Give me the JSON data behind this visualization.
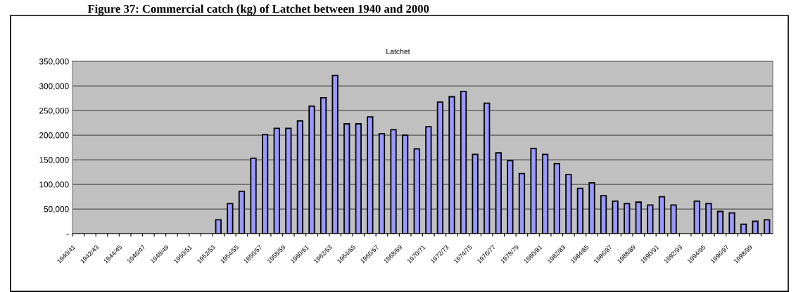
{
  "chart_data": {
    "type": "bar",
    "title": "Figure 37: Commercial catch (kg) of Latchet between 1940 and 2000",
    "subtitle": "Latchet",
    "categories": [
      "1940/41",
      null,
      "1942/43",
      null,
      "1944/45",
      null,
      "1946/47",
      null,
      "1948/49",
      null,
      "1950/51",
      null,
      "1952/53",
      null,
      "1954/55",
      null,
      "1956/57",
      null,
      "1958/59",
      null,
      "1960/61",
      null,
      "1962/63",
      null,
      "1964/65",
      null,
      "1966/67",
      null,
      "1968/69",
      null,
      "1970/71",
      null,
      "1972/73",
      null,
      "1974/75",
      null,
      "1976/77",
      null,
      "1978/79",
      null,
      "1980/81",
      null,
      "1982/83",
      null,
      "1984/85",
      null,
      "1986/87",
      null,
      "1988/89",
      null,
      "1990/91",
      null,
      "1992/93",
      null,
      "1994/95",
      null,
      "1996/97",
      null,
      "1998/99",
      null
    ],
    "values": [
      null,
      null,
      null,
      null,
      null,
      null,
      null,
      null,
      null,
      null,
      null,
      null,
      28000,
      61000,
      86000,
      153000,
      201000,
      214000,
      214000,
      229000,
      259000,
      276000,
      321000,
      223000,
      223000,
      237000,
      203000,
      211000,
      200000,
      172000,
      217000,
      267000,
      278000,
      289000,
      161000,
      265000,
      164000,
      148000,
      122000,
      173000,
      161000,
      142000,
      120000,
      92000,
      103000,
      77000,
      66000,
      61000,
      64000,
      58000,
      75000,
      58000,
      null,
      66000,
      61000,
      45000,
      42000,
      19000,
      25000,
      28000
    ],
    "color": "#9999ff",
    "ylim": [
      0,
      350000
    ],
    "yticks": [
      {
        "value": 0,
        "label": "-"
      },
      {
        "value": 50000,
        "label": "50,000"
      },
      {
        "value": 100000,
        "label": "100,000"
      },
      {
        "value": 150000,
        "label": "150,000"
      },
      {
        "value": 200000,
        "label": "200,000"
      },
      {
        "value": 250000,
        "label": "250,000"
      },
      {
        "value": 300000,
        "label": "300,000"
      },
      {
        "value": 350000,
        "label": "350,000"
      }
    ],
    "grid": "y"
  }
}
